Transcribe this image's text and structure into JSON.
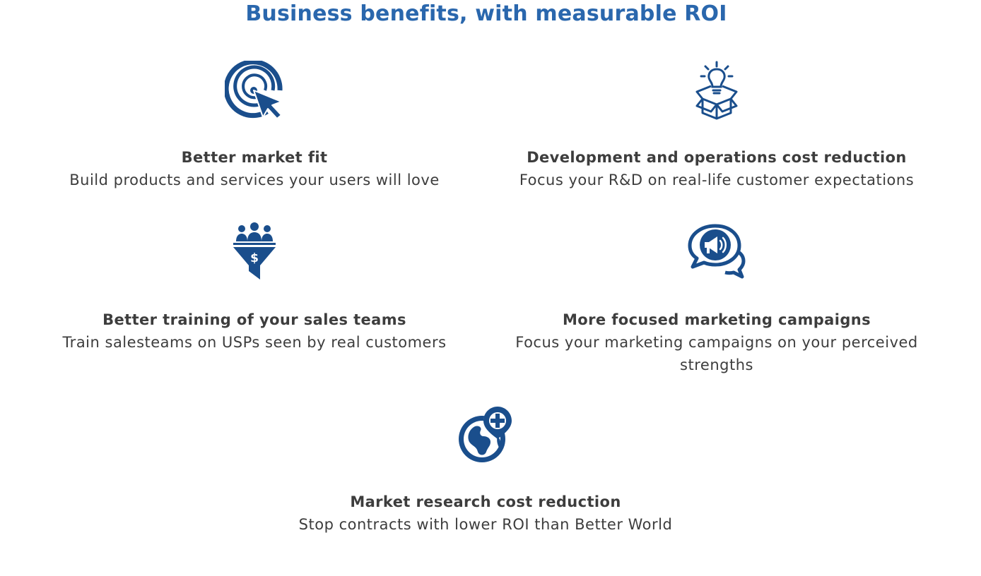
{
  "page": {
    "title": "Business benefits, with measurable ROI"
  },
  "colors": {
    "title": "#2a67ad",
    "icon": "#1a4e8c",
    "text": "#3d3d3d"
  },
  "benefits": [
    {
      "icon": "target-cursor-icon",
      "heading": "Better market fit",
      "description": "Build products and services your users will love"
    },
    {
      "icon": "lightbulb-box-icon",
      "heading": "Development and operations cost reduction",
      "description": "Focus your R&D on real-life customer expectations"
    },
    {
      "icon": "sales-funnel-icon",
      "heading": "Better training of your sales teams",
      "description": "Train salesteams on USPs seen by real customers"
    },
    {
      "icon": "megaphone-chat-icon",
      "heading": "More focused marketing campaigns",
      "description": "Focus your marketing campaigns on your perceived strengths"
    },
    {
      "icon": "globe-location-icon",
      "heading": "Market research cost reduction",
      "description": "Stop contracts with lower ROI than Better World"
    }
  ]
}
